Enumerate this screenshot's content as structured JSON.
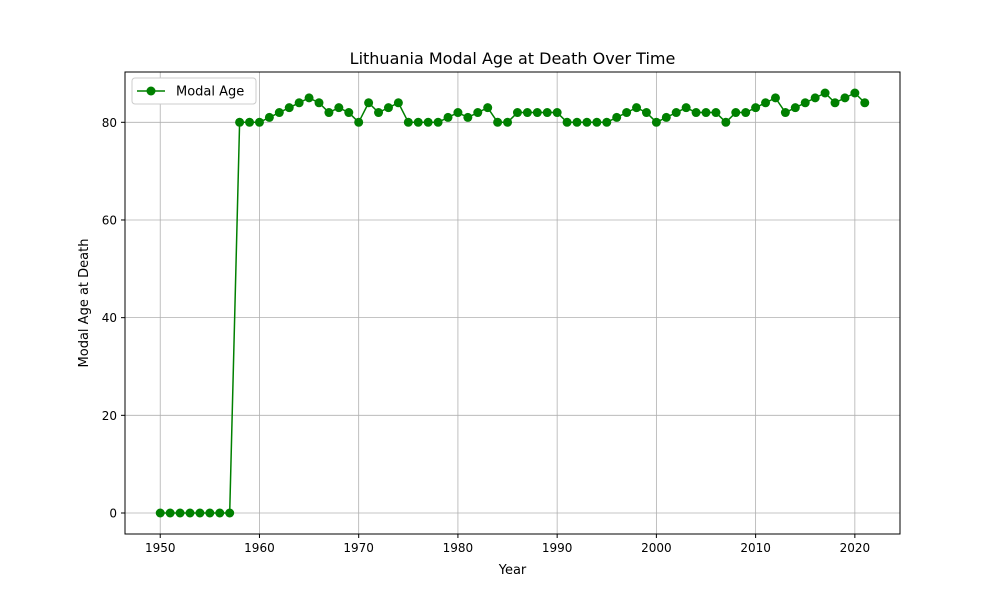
{
  "chart_data": {
    "type": "line",
    "title": "Lithuania Modal Age at Death Over Time",
    "xlabel": "Year",
    "ylabel": "Modal Age at Death",
    "xlim": [
      1946.45,
      2024.55
    ],
    "ylim": [
      -4.3,
      90.3
    ],
    "xticks": [
      1950,
      1960,
      1970,
      1980,
      1990,
      2000,
      2010,
      2020
    ],
    "yticks": [
      0,
      20,
      40,
      60,
      80
    ],
    "grid": true,
    "legend_position": "top-left",
    "colors": {
      "series": "#008000",
      "grid": "#b0b0b0",
      "axes": "#000000"
    },
    "x": [
      1950,
      1951,
      1952,
      1953,
      1954,
      1955,
      1956,
      1957,
      1958,
      1959,
      1960,
      1961,
      1962,
      1963,
      1964,
      1965,
      1966,
      1967,
      1968,
      1969,
      1970,
      1971,
      1972,
      1973,
      1974,
      1975,
      1976,
      1977,
      1978,
      1979,
      1980,
      1981,
      1982,
      1983,
      1984,
      1985,
      1986,
      1987,
      1988,
      1989,
      1990,
      1991,
      1992,
      1993,
      1994,
      1995,
      1996,
      1997,
      1998,
      1999,
      2000,
      2001,
      2002,
      2003,
      2004,
      2005,
      2006,
      2007,
      2008,
      2009,
      2010,
      2011,
      2012,
      2013,
      2014,
      2015,
      2016,
      2017,
      2018,
      2019,
      2020,
      2021
    ],
    "series": [
      {
        "name": "Modal Age",
        "marker": "circle",
        "values": [
          0,
          0,
          0,
          0,
          0,
          0,
          0,
          0,
          80,
          80,
          80,
          81,
          82,
          83,
          84,
          85,
          84,
          82,
          83,
          82,
          80,
          84,
          82,
          83,
          84,
          80,
          80,
          80,
          80,
          81,
          82,
          81,
          82,
          83,
          80,
          80,
          82,
          82,
          82,
          82,
          82,
          80,
          80,
          80,
          80,
          80,
          81,
          82,
          83,
          82,
          80,
          81,
          82,
          83,
          82,
          82,
          82,
          80,
          82,
          82,
          83,
          84,
          85,
          82,
          83,
          84,
          85,
          86,
          84,
          85,
          86,
          84
        ]
      }
    ]
  }
}
